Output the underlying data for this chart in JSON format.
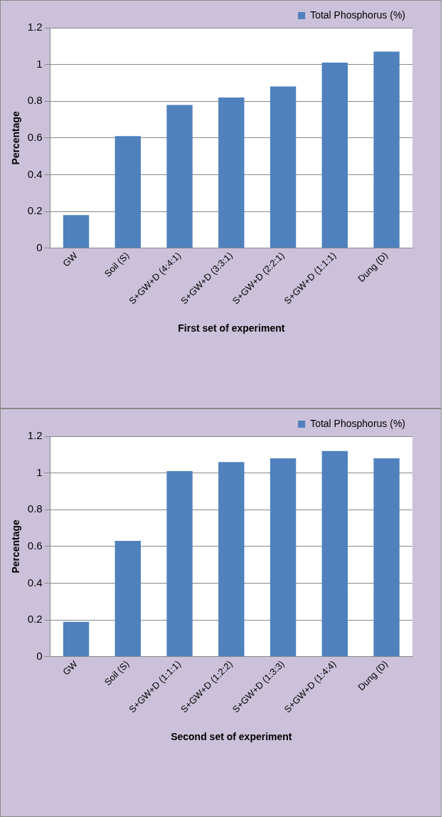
{
  "chart_data": [
    {
      "type": "bar",
      "xlabel": "First set of experiment",
      "ylabel": "Percentage",
      "categories": [
        "GW",
        "Soil (S)",
        "S+GW+D (4:4:1)",
        "S+GW+D (3:3:1)",
        "S+GW+D (2:2:1)",
        "S+GW+D (1:1:1)",
        "Dung (D)"
      ],
      "series": [
        {
          "name": "Total Phosphorus (%)",
          "color": "#4f81bd",
          "values": [
            0.18,
            0.61,
            0.78,
            0.82,
            0.88,
            1.01,
            1.07
          ]
        }
      ],
      "ylim": [
        0,
        1.2
      ],
      "yticks": [
        0,
        0.2,
        0.4,
        0.6,
        0.8,
        1,
        1.2
      ],
      "grid": "y",
      "legend": "top right"
    },
    {
      "type": "bar",
      "xlabel": "Second set of experiment",
      "ylabel": "Percentage",
      "categories": [
        "GW",
        "Soil (S)",
        "S+GW+D (1:1:1)",
        "S+GW+D (1:2:2)",
        "S+GW+D (1:3:3)",
        "S+GW+D (1:4:4)",
        "Dung (D)"
      ],
      "series": [
        {
          "name": "Total Phosphorus (%)",
          "color": "#4f81bd",
          "values": [
            0.19,
            0.63,
            1.01,
            1.06,
            1.08,
            1.12,
            1.08
          ]
        }
      ],
      "ylim": [
        0,
        1.2
      ],
      "yticks": [
        0,
        0.2,
        0.4,
        0.6,
        0.8,
        1,
        1.2
      ],
      "grid": "y",
      "legend": "top right"
    }
  ]
}
